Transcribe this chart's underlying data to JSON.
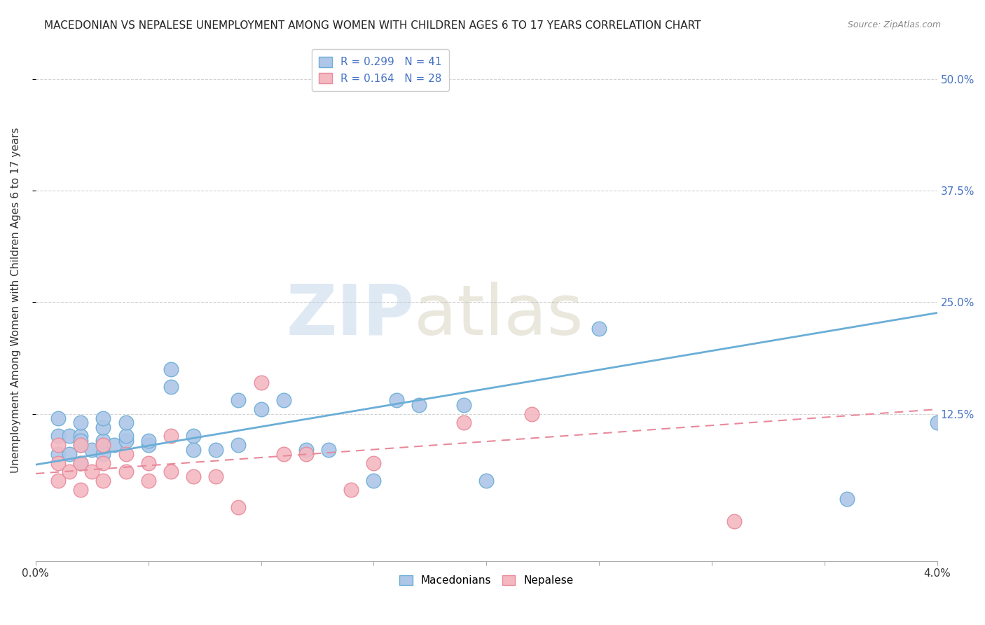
{
  "title": "MACEDONIAN VS NEPALESE UNEMPLOYMENT AMONG WOMEN WITH CHILDREN AGES 6 TO 17 YEARS CORRELATION CHART",
  "source": "Source: ZipAtlas.com",
  "ylabel": "Unemployment Among Women with Children Ages 6 to 17 years",
  "ytick_labels": [
    "50.0%",
    "37.5%",
    "25.0%",
    "12.5%"
  ],
  "ytick_values": [
    0.5,
    0.375,
    0.25,
    0.125
  ],
  "xlim": [
    0.0,
    0.04
  ],
  "ylim": [
    -0.04,
    0.545
  ],
  "legend_entries": [
    {
      "label": "R = 0.299   N = 41",
      "color": "#aec6e8"
    },
    {
      "label": "R = 0.164   N = 28",
      "color": "#f4b8c1"
    }
  ],
  "legend_label_macedonians": "Macedonians",
  "legend_label_nepalese": "Nepalese",
  "macedonian_color": "#aec6e8",
  "macedonian_edge_color": "#6aaed6",
  "nepalese_color": "#f4b8c1",
  "nepalese_edge_color": "#e8899a",
  "trend_macedonian_color": "#6aaed6",
  "trend_nepalese_color": "#e8899a",
  "mac_trend": [
    0.068,
    0.238
  ],
  "nep_trend": [
    0.058,
    0.13
  ],
  "macedonian_x": [
    0.001,
    0.001,
    0.001,
    0.0015,
    0.0015,
    0.002,
    0.002,
    0.002,
    0.002,
    0.002,
    0.0025,
    0.003,
    0.003,
    0.003,
    0.003,
    0.003,
    0.0035,
    0.004,
    0.004,
    0.004,
    0.005,
    0.005,
    0.006,
    0.006,
    0.007,
    0.007,
    0.008,
    0.009,
    0.009,
    0.01,
    0.011,
    0.012,
    0.013,
    0.015,
    0.016,
    0.017,
    0.019,
    0.02,
    0.025,
    0.036,
    0.04
  ],
  "macedonian_y": [
    0.08,
    0.1,
    0.12,
    0.08,
    0.1,
    0.07,
    0.09,
    0.1,
    0.115,
    0.095,
    0.085,
    0.08,
    0.09,
    0.095,
    0.11,
    0.12,
    0.09,
    0.095,
    0.1,
    0.115,
    0.09,
    0.095,
    0.155,
    0.175,
    0.1,
    0.085,
    0.085,
    0.14,
    0.09,
    0.13,
    0.14,
    0.085,
    0.085,
    0.05,
    0.14,
    0.135,
    0.135,
    0.05,
    0.22,
    0.03,
    0.115
  ],
  "nepalese_x": [
    0.001,
    0.001,
    0.001,
    0.0015,
    0.002,
    0.002,
    0.002,
    0.0025,
    0.003,
    0.003,
    0.003,
    0.004,
    0.004,
    0.005,
    0.005,
    0.006,
    0.006,
    0.007,
    0.008,
    0.009,
    0.01,
    0.011,
    0.012,
    0.014,
    0.015,
    0.019,
    0.022,
    0.031
  ],
  "nepalese_y": [
    0.05,
    0.07,
    0.09,
    0.06,
    0.04,
    0.07,
    0.09,
    0.06,
    0.05,
    0.07,
    0.09,
    0.06,
    0.08,
    0.05,
    0.07,
    0.06,
    0.1,
    0.055,
    0.055,
    0.02,
    0.16,
    0.08,
    0.08,
    0.04,
    0.07,
    0.115,
    0.125,
    0.005
  ],
  "background_color": "#ffffff",
  "grid_color": "#d3d3d3",
  "title_fontsize": 11,
  "source_fontsize": 9,
  "axis_label_color": "#4472c4",
  "marker_size": 220
}
